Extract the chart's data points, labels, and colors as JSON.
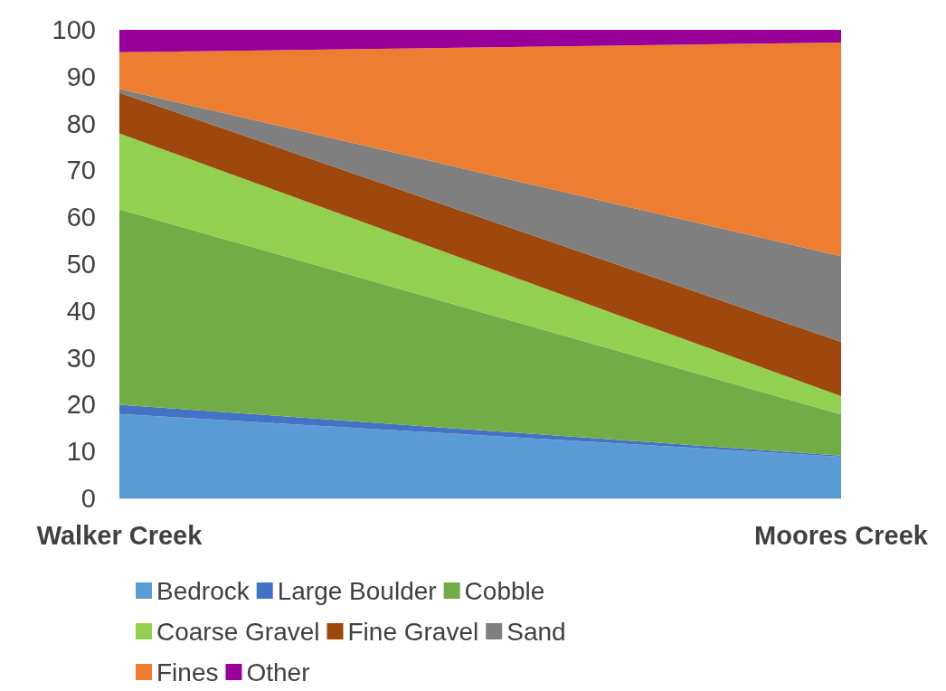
{
  "chart_data": {
    "type": "area",
    "stacked": true,
    "categories": [
      "Walker Creek",
      "Moores Creek"
    ],
    "series": [
      {
        "name": "Bedrock",
        "color": "#5b9bd5",
        "values": [
          18,
          8.9
        ]
      },
      {
        "name": "Large Boulder",
        "color": "#4472c4",
        "values": [
          2,
          0.2
        ]
      },
      {
        "name": "Cobble",
        "color": "#70ad47",
        "values": [
          41.7,
          8.8
        ]
      },
      {
        "name": "Coarse Gravel",
        "color": "#92d050",
        "values": [
          16.2,
          3.9
        ]
      },
      {
        "name": "Fine Gravel",
        "color": "#9e480e",
        "values": [
          8.7,
          11.6
        ]
      },
      {
        "name": "Sand",
        "color": "#7f7f7f",
        "values": [
          0.8,
          18.3
        ]
      },
      {
        "name": "Fines",
        "color": "#ed7d31",
        "values": [
          7.8,
          45.6
        ]
      },
      {
        "name": "Other",
        "color": "#990099",
        "values": [
          4.8,
          2.9
        ]
      }
    ],
    "ylim": [
      0,
      100
    ],
    "yticks": [
      0,
      10,
      20,
      30,
      40,
      50,
      60,
      70,
      80,
      90,
      100
    ],
    "grid": false,
    "legend": "bottom"
  }
}
